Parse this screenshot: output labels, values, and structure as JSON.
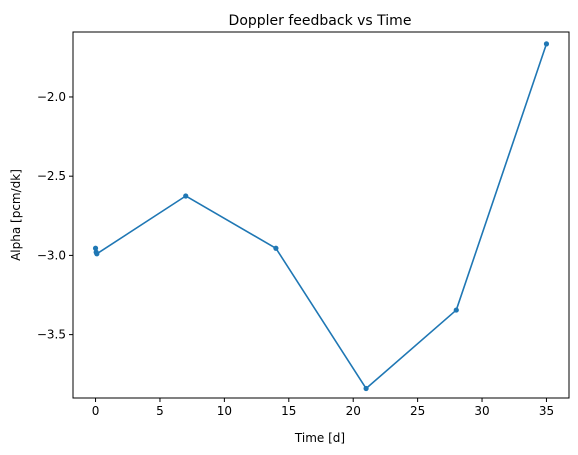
{
  "chart_data": {
    "type": "line",
    "title": "Doppler feedback vs Time",
    "xlabel": "Time [d]",
    "ylabel": "Alpha [pcm/dk]",
    "xlim": [
      -1.75,
      36.75
    ],
    "ylim": [
      -3.9,
      -1.59
    ],
    "xticks": [
      0,
      5,
      10,
      15,
      20,
      25,
      30,
      35
    ],
    "xtick_labels": [
      "0",
      "5",
      "10",
      "15",
      "20",
      "25",
      "30",
      "35"
    ],
    "yticks": [
      -3.5,
      -3.0,
      -2.5,
      -2.0
    ],
    "ytick_labels": [
      "−3.5",
      "−3.0",
      "−2.5",
      "−2.0"
    ],
    "grid": false,
    "series": [
      {
        "color": "#1f77b4",
        "marker": "circle",
        "x": [
          0,
          0.05,
          0.1,
          7,
          14,
          21,
          28,
          35
        ],
        "y": [
          -2.955,
          -2.98,
          -2.99,
          -2.625,
          -2.955,
          -3.84,
          -3.345,
          -1.665
        ]
      }
    ]
  }
}
